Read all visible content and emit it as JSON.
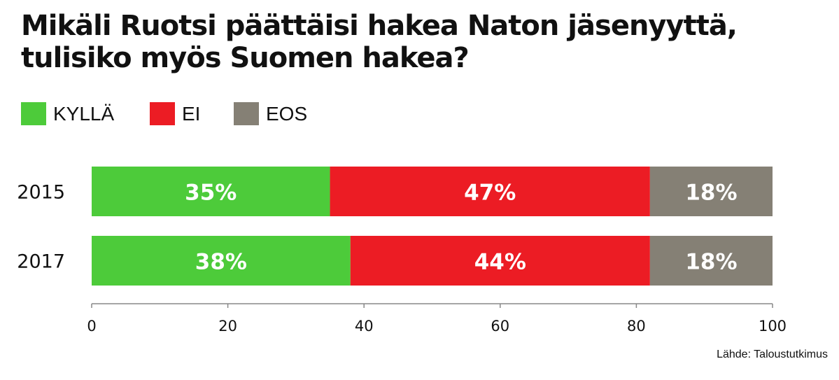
{
  "title_line1": "Mikäli Ruotsi päättäisi hakea Naton jäsenyyttä,",
  "title_line2": "tulisiko myös Suomen hakea?",
  "legend": [
    {
      "label": "KYLLÄ",
      "color": "#4dcb3a"
    },
    {
      "label": "EI",
      "color": "#ec1c24"
    },
    {
      "label": "EOS",
      "color": "#858075"
    }
  ],
  "source": "Lähde: Taloustutkimus",
  "chart_data": {
    "type": "bar",
    "orientation": "horizontal",
    "stacked": true,
    "title": "Mikäli Ruotsi päättäisi hakea Naton jäsenyyttä, tulisiko myös Suomen hakea?",
    "categories": [
      "2015",
      "2017"
    ],
    "series": [
      {
        "name": "KYLLÄ",
        "color": "#4dcb3a",
        "values": [
          35,
          38
        ],
        "labels": [
          "35%",
          "38%"
        ]
      },
      {
        "name": "EI",
        "color": "#ec1c24",
        "values": [
          47,
          44
        ],
        "labels": [
          "47%",
          "44%"
        ]
      },
      {
        "name": "EOS",
        "color": "#858075",
        "values": [
          18,
          18
        ],
        "labels": [
          "18%",
          "18%"
        ]
      }
    ],
    "xlim": [
      0,
      100
    ],
    "xticks": [
      0,
      20,
      40,
      60,
      80,
      100
    ],
    "grid": false,
    "legend_position": "top-left"
  }
}
